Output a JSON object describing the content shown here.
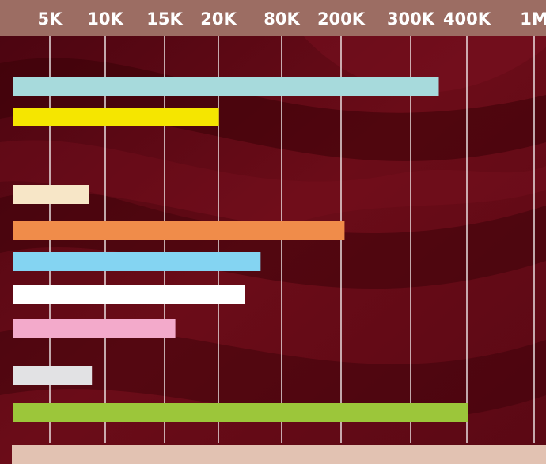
{
  "chart_data": {
    "type": "bar",
    "orientation": "horizontal",
    "title": "",
    "xlabel": "",
    "ylabel": "",
    "x_scale": "categorical-ticks (non-linear)",
    "tick_labels": [
      "5K",
      "10K",
      "15K",
      "20K",
      "80K",
      "200K",
      "300K",
      "400K",
      "1M"
    ],
    "tick_values": [
      5000,
      10000,
      15000,
      20000,
      80000,
      200000,
      300000,
      400000,
      1000000
    ],
    "grid": true,
    "categories": [
      "",
      "",
      "",
      "",
      "",
      "",
      "",
      "",
      ""
    ],
    "values": [
      350000,
      20500,
      8500,
      205000,
      60000,
      45000,
      16000,
      8800,
      410000
    ],
    "bar_colors": [
      "#a7dadc",
      "#f5e600",
      "#f7e6c7",
      "#f08c4a",
      "#84d4f2",
      "#ffffff",
      "#f3aacb",
      "#e2e2e4",
      "#9cc63a"
    ],
    "bottom_bar_color": "#e2c2b2"
  },
  "colors": {
    "background": "#5e0a14",
    "background_dark": "#3a0208",
    "header_band": "#9c6d63",
    "gridline": "#ffffff",
    "tick_text": "#ffffff"
  }
}
